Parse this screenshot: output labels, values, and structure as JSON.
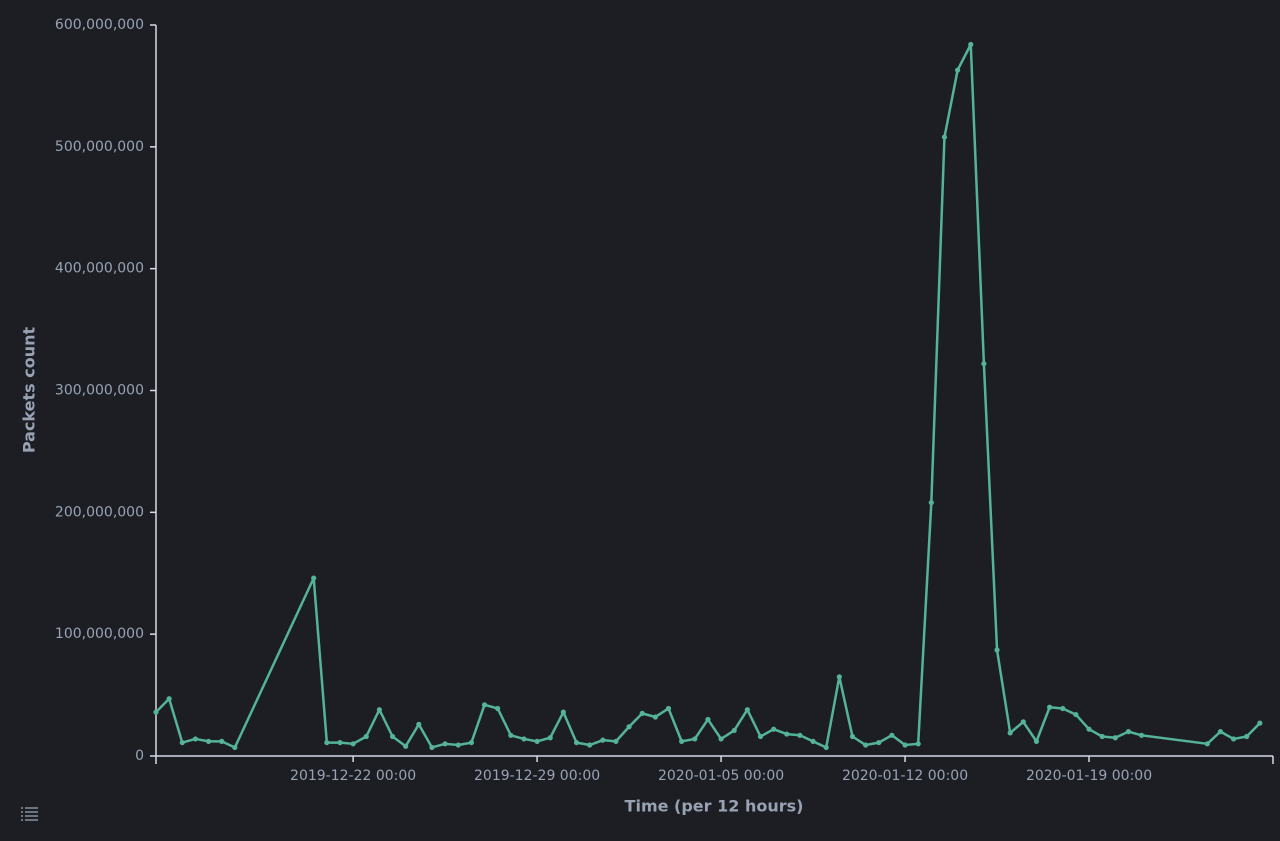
{
  "chart_data": {
    "type": "line",
    "x_label": "Time (per 12 hours)",
    "y_label": "Packets count",
    "x": [
      "2019-12-14 12:00",
      "2019-12-15 00:00",
      "2019-12-15 12:00",
      "2019-12-16 00:00",
      "2019-12-16 12:00",
      "2019-12-17 00:00",
      "2019-12-17 12:00",
      "2019-12-20 12:00",
      "2019-12-21 00:00",
      "2019-12-21 12:00",
      "2019-12-22 00:00",
      "2019-12-22 12:00",
      "2019-12-23 00:00",
      "2019-12-23 12:00",
      "2019-12-24 00:00",
      "2019-12-24 12:00",
      "2019-12-25 00:00",
      "2019-12-25 12:00",
      "2019-12-26 00:00",
      "2019-12-26 12:00",
      "2019-12-27 00:00",
      "2019-12-27 12:00",
      "2019-12-28 00:00",
      "2019-12-28 12:00",
      "2019-12-29 00:00",
      "2019-12-29 12:00",
      "2019-12-30 00:00",
      "2019-12-30 12:00",
      "2019-12-31 00:00",
      "2019-12-31 12:00",
      "2020-01-01 00:00",
      "2020-01-01 12:00",
      "2020-01-02 00:00",
      "2020-01-02 12:00",
      "2020-01-03 00:00",
      "2020-01-03 12:00",
      "2020-01-04 00:00",
      "2020-01-04 12:00",
      "2020-01-05 00:00",
      "2020-01-05 12:00",
      "2020-01-06 00:00",
      "2020-01-06 12:00",
      "2020-01-07 00:00",
      "2020-01-07 12:00",
      "2020-01-08 00:00",
      "2020-01-08 12:00",
      "2020-01-09 00:00",
      "2020-01-09 12:00",
      "2020-01-10 00:00",
      "2020-01-10 12:00",
      "2020-01-11 00:00",
      "2020-01-11 12:00",
      "2020-01-12 00:00",
      "2020-01-12 12:00",
      "2020-01-13 00:00",
      "2020-01-13 12:00",
      "2020-01-14 00:00",
      "2020-01-14 12:00",
      "2020-01-15 00:00",
      "2020-01-15 12:00",
      "2020-01-16 00:00",
      "2020-01-16 12:00",
      "2020-01-17 00:00",
      "2020-01-17 12:00",
      "2020-01-18 00:00",
      "2020-01-18 12:00",
      "2020-01-19 00:00",
      "2020-01-19 12:00",
      "2020-01-20 00:00",
      "2020-01-20 12:00",
      "2020-01-21 00:00",
      "2020-01-23 12:00",
      "2020-01-24 00:00",
      "2020-01-24 12:00",
      "2020-01-25 00:00",
      "2020-01-25 12:00"
    ],
    "series": [
      {
        "name": "Packets count",
        "color": "#54b399",
        "values": [
          36000000,
          47000000,
          11000000,
          14000000,
          12000000,
          12000000,
          7000000,
          146000000,
          11000000,
          11000000,
          10000000,
          16000000,
          38000000,
          16000000,
          8000000,
          26000000,
          7000000,
          10000000,
          9000000,
          11000000,
          42000000,
          39000000,
          17000000,
          14000000,
          12000000,
          15000000,
          36000000,
          11000000,
          9000000,
          13000000,
          12000000,
          24000000,
          35000000,
          32000000,
          39000000,
          12000000,
          14000000,
          30000000,
          14000000,
          21000000,
          38000000,
          16000000,
          22000000,
          18000000,
          17000000,
          12000000,
          7000000,
          65000000,
          16000000,
          9000000,
          11000000,
          17000000,
          9000000,
          10000000,
          208000000,
          508000000,
          563000000,
          584000000,
          322000000,
          87000000,
          19000000,
          28000000,
          12000000,
          40000000,
          39000000,
          34000000,
          22000000,
          16000000,
          15000000,
          20000000,
          17000000,
          10000000,
          20000000,
          14000000,
          16000000,
          27000000
        ]
      }
    ],
    "xlim": [
      "2019-12-14 12:00",
      "2020-01-26 00:00"
    ],
    "xticks": [
      "2019-12-22 00:00",
      "2019-12-29 00:00",
      "2020-01-05 00:00",
      "2020-01-12 00:00",
      "2020-01-19 00:00"
    ],
    "ylim": [
      0,
      600000000
    ],
    "yticks": [
      0,
      {
        "value": 100000000,
        "label": "100,000,000"
      },
      {
        "value": 200000000,
        "label": "200,000,000"
      },
      {
        "value": 300000000,
        "label": "300,000,000"
      },
      {
        "value": 400000000,
        "label": "400,000,000"
      },
      {
        "value": 500000000,
        "label": "500,000,000"
      },
      {
        "value": 600000000,
        "label": "600,000,000"
      }
    ],
    "grid": false
  }
}
